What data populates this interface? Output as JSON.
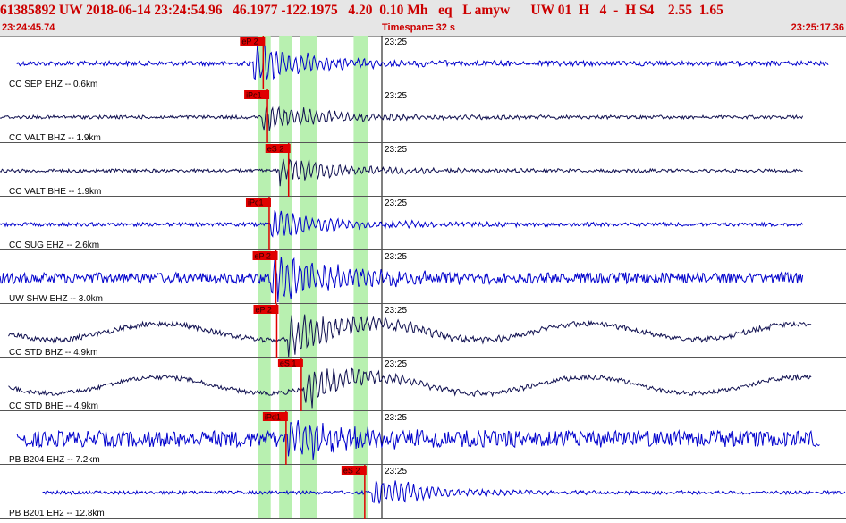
{
  "header": {
    "title_line": "61385892 UW 2018-06-14 23:24:54.96   46.1977 -122.1975   4.20  0.10 Mh   eq   L amyw      UW 01  H   4  -  H S4    2.55  1.65",
    "start_time": "23:24:45.74",
    "timespan": "Timespan=  32 s",
    "end_time": "23:25:17.36"
  },
  "colors": {
    "trace_blue": "#0000cc",
    "trace_navy": "#101050",
    "pick_red": "#e00000",
    "window_green": "#b8f0b0",
    "header_red": "#cc0000"
  },
  "traces": [
    {
      "label": "CC SEP EHZ -- 0.6km",
      "color": "blue",
      "amp": 0.75,
      "onset": 0.3,
      "band_start": 0.02,
      "band_end": 0.98,
      "picks": [
        {
          "label": "eP 2",
          "at": 0.29
        }
      ],
      "time_mark": "23:25"
    },
    {
      "label": "CC VALT BHZ -- 1.9km",
      "color": "navy",
      "amp": 0.55,
      "onset": 0.31,
      "band_start": 0.0,
      "band_end": 0.95,
      "picks": [
        {
          "label": "iPc1",
          "at": 0.295
        }
      ],
      "time_mark": "23:25"
    },
    {
      "label": "CC VALT BHE -- 1.9km",
      "color": "navy",
      "amp": 0.55,
      "onset": 0.33,
      "band_start": 0.0,
      "band_end": 0.95,
      "picks": [
        {
          "label": "eS 2",
          "at": 0.32
        }
      ],
      "time_mark": "23:25"
    },
    {
      "label": "CC SUG EHZ -- 2.6km",
      "color": "blue",
      "amp": 0.6,
      "onset": 0.32,
      "band_start": 0.0,
      "band_end": 0.95,
      "picks": [
        {
          "label": "iPc1",
          "at": 0.297
        }
      ],
      "time_mark": "23:25"
    },
    {
      "label": "UW SHW EHZ -- 3.0km",
      "color": "blue",
      "amp": 0.95,
      "onset": 0.32,
      "band_start": 0.0,
      "band_end": 0.95,
      "picks": [
        {
          "label": "eP 2",
          "at": 0.305
        }
      ],
      "time_mark": "23:25"
    },
    {
      "label": "CC STD BHZ -- 4.9km",
      "color": "navy",
      "amp": 0.85,
      "onset": 0.34,
      "band_start": 0.01,
      "band_end": 0.96,
      "picks": [
        {
          "label": "eP 2",
          "at": 0.306
        }
      ],
      "time_mark": "23:25"
    },
    {
      "label": "CC STD BHE -- 4.9km",
      "color": "navy",
      "amp": 0.7,
      "onset": 0.36,
      "band_start": 0.01,
      "band_end": 0.96,
      "picks": [
        {
          "label": "eS 1",
          "at": 0.335
        }
      ],
      "time_mark": "23:25"
    },
    {
      "label": "PB B204 EHZ -- 7.2km",
      "color": "blue",
      "amp": 0.85,
      "onset": 0.34,
      "band_start": 0.02,
      "band_end": 0.97,
      "picks": [
        {
          "label": "iPd1",
          "at": 0.317
        }
      ],
      "time_mark": "23:25"
    },
    {
      "label": "PB B201 EH2 -- 12.8km",
      "color": "blue",
      "amp": 0.55,
      "onset": 0.44,
      "band_start": 0.05,
      "band_end": 1.0,
      "picks": [
        {
          "label": "eS 2",
          "at": 0.41
        }
      ],
      "time_mark": "23:25"
    }
  ],
  "green_windows": [
    {
      "start": 0.305,
      "end": 0.32
    },
    {
      "start": 0.33,
      "end": 0.345
    },
    {
      "start": 0.355,
      "end": 0.367
    },
    {
      "start": 0.36,
      "end": 0.375
    },
    {
      "start": 0.418,
      "end": 0.435
    }
  ]
}
